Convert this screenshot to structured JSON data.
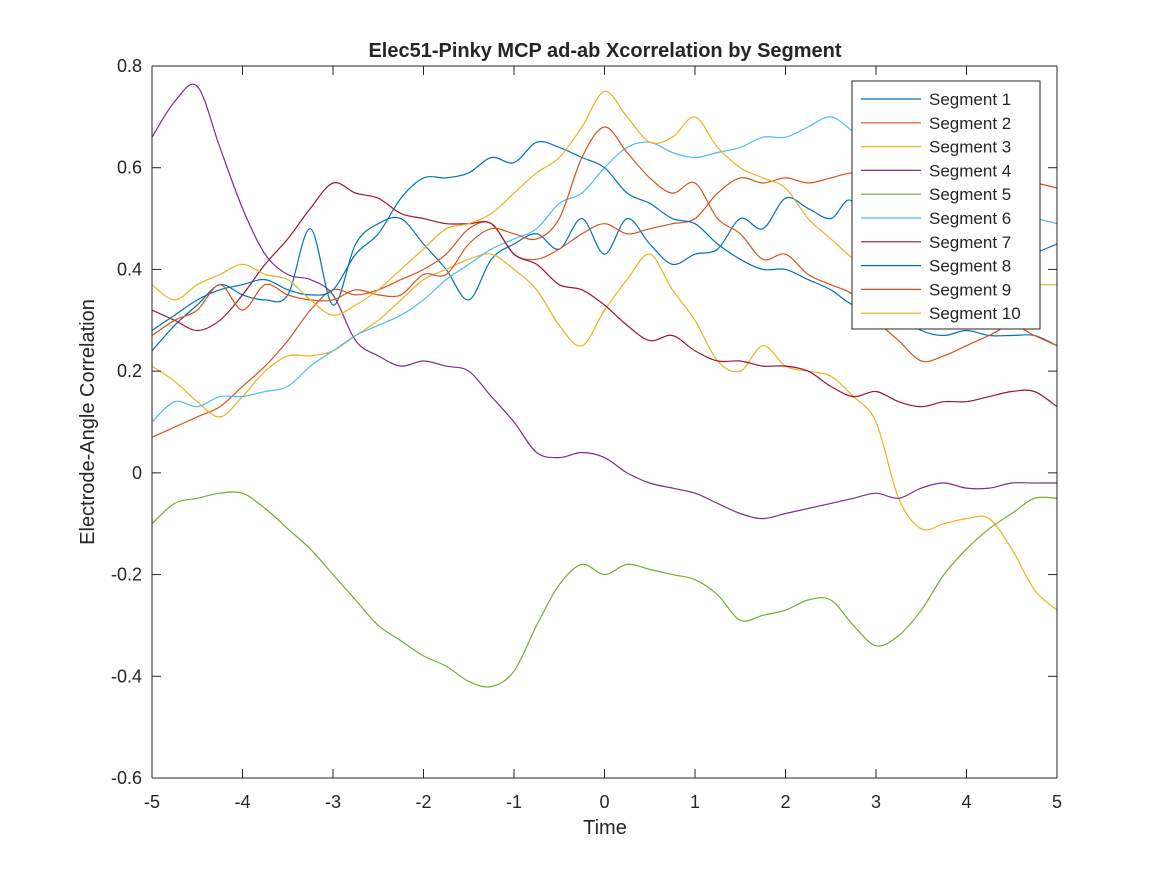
{
  "chart_data": {
    "type": "line",
    "title": "Elec51-Pinky MCP ad-ab Xcorrelation by Segment",
    "xlabel": "Time",
    "ylabel": "Electrode-Angle Correlation",
    "xlim": [
      -5,
      5
    ],
    "ylim": [
      -0.6,
      0.8
    ],
    "xticks": [
      -5,
      -4,
      -3,
      -2,
      -1,
      0,
      1,
      2,
      3,
      4,
      5
    ],
    "xtick_labels": [
      "-5",
      "-4",
      "-3",
      "-2",
      "-1",
      "0",
      "1",
      "2",
      "3",
      "4",
      "5"
    ],
    "yticks": [
      -0.6,
      -0.4,
      -0.2,
      0,
      0.2,
      0.4,
      0.6,
      0.8
    ],
    "ytick_labels": [
      "-0.6",
      "-0.4",
      "-0.2",
      "0",
      "0.2",
      "0.4",
      "0.6",
      "0.8"
    ],
    "grid": false,
    "legend_position": "top-right",
    "x": [
      -5,
      -4.75,
      -4.5,
      -4.25,
      -4,
      -3.75,
      -3.5,
      -3.25,
      -3,
      -2.75,
      -2.5,
      -2.25,
      -2,
      -1.75,
      -1.5,
      -1.25,
      -1,
      -0.75,
      -0.5,
      -0.25,
      0,
      0.25,
      0.5,
      0.75,
      1,
      1.25,
      1.5,
      1.75,
      2,
      2.25,
      2.5,
      2.75,
      3,
      3.25,
      3.5,
      3.75,
      4,
      4.25,
      4.5,
      4.75,
      5
    ],
    "series": [
      {
        "name": "Segment 1",
        "color": "#0072BD",
        "values": [
          0.24,
          0.29,
          0.33,
          0.37,
          0.35,
          0.34,
          0.35,
          0.48,
          0.33,
          0.45,
          0.49,
          0.5,
          0.45,
          0.4,
          0.34,
          0.42,
          0.45,
          0.47,
          0.44,
          0.5,
          0.43,
          0.5,
          0.45,
          0.41,
          0.43,
          0.44,
          0.5,
          0.48,
          0.54,
          0.52,
          0.5,
          0.53,
          0.35,
          0.3,
          0.3,
          0.32,
          0.35,
          0.38,
          0.4,
          0.43,
          0.45
        ]
      },
      {
        "name": "Segment 2",
        "color": "#D95319",
        "values": [
          0.07,
          0.09,
          0.11,
          0.13,
          0.17,
          0.21,
          0.26,
          0.32,
          0.36,
          0.35,
          0.36,
          0.38,
          0.4,
          0.43,
          0.48,
          0.49,
          0.43,
          0.42,
          0.44,
          0.47,
          0.49,
          0.47,
          0.48,
          0.49,
          0.5,
          0.55,
          0.58,
          0.57,
          0.58,
          0.57,
          0.58,
          0.59,
          0.58,
          0.56,
          0.55,
          0.54,
          0.55,
          0.56,
          0.57,
          0.57,
          0.56
        ]
      },
      {
        "name": "Segment 3",
        "color": "#EDB120",
        "values": [
          0.21,
          0.18,
          0.14,
          0.11,
          0.15,
          0.2,
          0.23,
          0.23,
          0.24,
          0.27,
          0.3,
          0.34,
          0.38,
          0.4,
          0.42,
          0.43,
          0.4,
          0.36,
          0.29,
          0.25,
          0.32,
          0.38,
          0.43,
          0.36,
          0.3,
          0.22,
          0.2,
          0.25,
          0.21,
          0.2,
          0.19,
          0.15,
          0.1,
          -0.05,
          -0.11,
          -0.1,
          -0.09,
          -0.09,
          -0.15,
          -0.23,
          -0.27
        ]
      },
      {
        "name": "Segment 4",
        "color": "#7E2F8E",
        "values": [
          0.66,
          0.73,
          0.76,
          0.64,
          0.52,
          0.43,
          0.39,
          0.38,
          0.35,
          0.26,
          0.23,
          0.21,
          0.22,
          0.21,
          0.2,
          0.15,
          0.1,
          0.04,
          0.03,
          0.04,
          0.03,
          0.0,
          -0.02,
          -0.03,
          -0.04,
          -0.06,
          -0.08,
          -0.09,
          -0.08,
          -0.07,
          -0.06,
          -0.05,
          -0.04,
          -0.05,
          -0.03,
          -0.02,
          -0.03,
          -0.03,
          -0.02,
          -0.02,
          -0.02
        ]
      },
      {
        "name": "Segment 5",
        "color": "#77AC30",
        "values": [
          -0.1,
          -0.06,
          -0.05,
          -0.04,
          -0.04,
          -0.07,
          -0.11,
          -0.15,
          -0.2,
          -0.25,
          -0.3,
          -0.33,
          -0.36,
          -0.38,
          -0.41,
          -0.42,
          -0.39,
          -0.3,
          -0.22,
          -0.18,
          -0.2,
          -0.18,
          -0.19,
          -0.2,
          -0.21,
          -0.24,
          -0.29,
          -0.28,
          -0.27,
          -0.25,
          -0.25,
          -0.3,
          -0.34,
          -0.32,
          -0.27,
          -0.2,
          -0.15,
          -0.11,
          -0.08,
          -0.05,
          -0.05
        ]
      },
      {
        "name": "Segment 6",
        "color": "#4DBEEE",
        "values": [
          0.1,
          0.14,
          0.13,
          0.15,
          0.15,
          0.16,
          0.17,
          0.21,
          0.24,
          0.27,
          0.29,
          0.31,
          0.34,
          0.38,
          0.41,
          0.44,
          0.46,
          0.48,
          0.53,
          0.55,
          0.6,
          0.64,
          0.65,
          0.63,
          0.62,
          0.63,
          0.64,
          0.66,
          0.66,
          0.68,
          0.7,
          0.67,
          0.63,
          0.58,
          0.55,
          0.54,
          0.52,
          0.51,
          0.5,
          0.5,
          0.49
        ]
      },
      {
        "name": "Segment 7",
        "color": "#A2142F",
        "values": [
          0.32,
          0.3,
          0.28,
          0.3,
          0.35,
          0.41,
          0.46,
          0.52,
          0.57,
          0.55,
          0.54,
          0.51,
          0.5,
          0.49,
          0.49,
          0.49,
          0.43,
          0.41,
          0.37,
          0.36,
          0.33,
          0.29,
          0.26,
          0.27,
          0.24,
          0.22,
          0.22,
          0.21,
          0.21,
          0.2,
          0.17,
          0.15,
          0.16,
          0.14,
          0.13,
          0.14,
          0.14,
          0.15,
          0.16,
          0.16,
          0.13
        ]
      },
      {
        "name": "Segment 8",
        "color": "#0072BD",
        "values": [
          0.28,
          0.31,
          0.34,
          0.36,
          0.37,
          0.38,
          0.36,
          0.35,
          0.36,
          0.43,
          0.47,
          0.54,
          0.58,
          0.58,
          0.59,
          0.62,
          0.61,
          0.65,
          0.64,
          0.62,
          0.6,
          0.55,
          0.53,
          0.5,
          0.49,
          0.45,
          0.42,
          0.4,
          0.4,
          0.38,
          0.36,
          0.33,
          0.33,
          0.31,
          0.28,
          0.27,
          0.28,
          0.27,
          0.27,
          0.27,
          0.25
        ]
      },
      {
        "name": "Segment 9",
        "color": "#D95319",
        "values": [
          0.27,
          0.3,
          0.32,
          0.37,
          0.32,
          0.37,
          0.35,
          0.34,
          0.34,
          0.36,
          0.35,
          0.35,
          0.39,
          0.39,
          0.45,
          0.48,
          0.47,
          0.46,
          0.5,
          0.62,
          0.68,
          0.63,
          0.58,
          0.55,
          0.57,
          0.5,
          0.47,
          0.42,
          0.43,
          0.39,
          0.37,
          0.35,
          0.3,
          0.26,
          0.22,
          0.23,
          0.25,
          0.27,
          0.29,
          0.27,
          0.25
        ]
      },
      {
        "name": "Segment 10",
        "color": "#EDB120",
        "values": [
          0.37,
          0.34,
          0.37,
          0.39,
          0.41,
          0.39,
          0.38,
          0.34,
          0.31,
          0.33,
          0.36,
          0.4,
          0.44,
          0.48,
          0.49,
          0.51,
          0.55,
          0.59,
          0.62,
          0.68,
          0.75,
          0.7,
          0.65,
          0.66,
          0.7,
          0.64,
          0.6,
          0.58,
          0.56,
          0.5,
          0.46,
          0.42,
          0.38,
          0.34,
          0.34,
          0.35,
          0.36,
          0.37,
          0.37,
          0.37,
          0.37
        ]
      }
    ]
  }
}
